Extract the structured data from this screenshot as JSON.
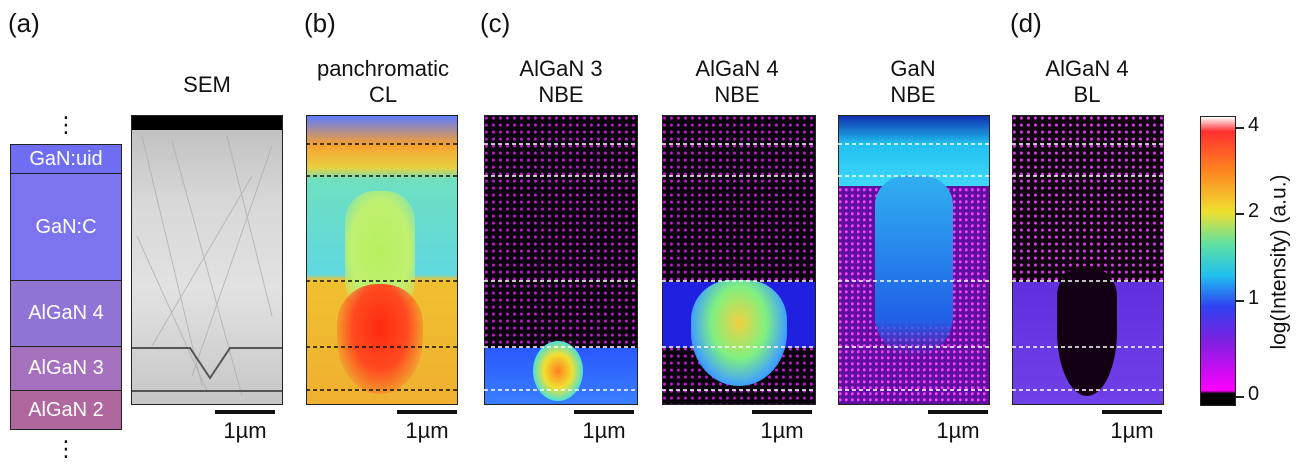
{
  "panel_labels": {
    "a": "(a)",
    "b": "(b)",
    "c": "(c)",
    "d": "(d)"
  },
  "titles": {
    "sem": "SEM",
    "pan": "panchromatic\nCL",
    "al3": "AlGaN 3\nNBE",
    "al4": "AlGaN 4\nNBE",
    "gan": "GaN\nNBE",
    "bl": "AlGaN 4\nBL"
  },
  "layers": [
    {
      "label": "GaN:uid",
      "color": "#6f6ef2"
    },
    {
      "label": "GaN:C",
      "color": "#7b74ee"
    },
    {
      "label": "AlGaN 4",
      "color": "#8f74d6"
    },
    {
      "label": "AlGaN 3",
      "color": "#a570be"
    },
    {
      "label": "AlGaN 2",
      "color": "#b0679d"
    }
  ],
  "ellipsis": "⋮",
  "scale_label": "1µm",
  "colorbar": {
    "title": "log(Intensity) (a.u.)",
    "ticks": [
      "4",
      "2",
      "1",
      "0"
    ]
  }
}
